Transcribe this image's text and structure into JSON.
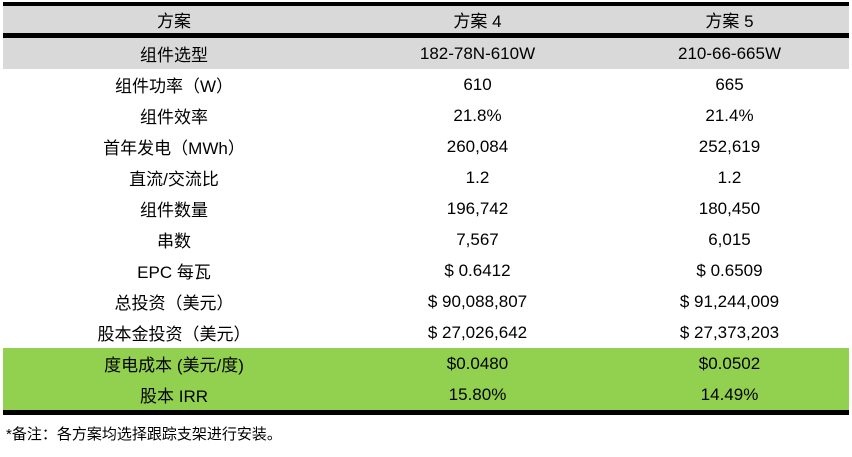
{
  "chart_data": {
    "type": "table",
    "title": "",
    "columns": [
      "方案",
      "方案 4",
      "方案 5"
    ],
    "rows": [
      [
        "组件选型",
        "182-78N-610W",
        "210-66-665W"
      ],
      [
        "组件功率（W）",
        "610",
        "665"
      ],
      [
        "组件效率",
        "21.8%",
        "21.4%"
      ],
      [
        "首年发电（MWh）",
        "260,084",
        "252,619"
      ],
      [
        "直流/交流比",
        "1.2",
        "1.2"
      ],
      [
        "组件数量",
        "196,742",
        "180,450"
      ],
      [
        "串数",
        "7,567",
        "6,015"
      ],
      [
        "EPC 每瓦",
        "$ 0.6412",
        "$ 0.6509"
      ],
      [
        "总投资（美元）",
        "$ 90,088,807",
        "$ 91,244,009"
      ],
      [
        "股本金投资（美元）",
        "$ 27,026,642",
        "$ 27,373,203"
      ],
      [
        "度电成本 (美元/度)",
        "$0.0480",
        "$0.0502"
      ],
      [
        "股本 IRR",
        "15.80%",
        "14.49%"
      ]
    ],
    "footnote": "*备注：各方案均选择跟踪支架进行安装。",
    "styling": {
      "header_bg": "#d9d9d9",
      "subheader_row_label": "组件选型",
      "subheader_row_bg": "#d9d9d9",
      "highlight_rows": [
        "度电成本 (美元/度)",
        "股本 IRR"
      ],
      "highlight_bg": "#92d050",
      "border_color": "#000000",
      "text_color": "#000000"
    }
  }
}
